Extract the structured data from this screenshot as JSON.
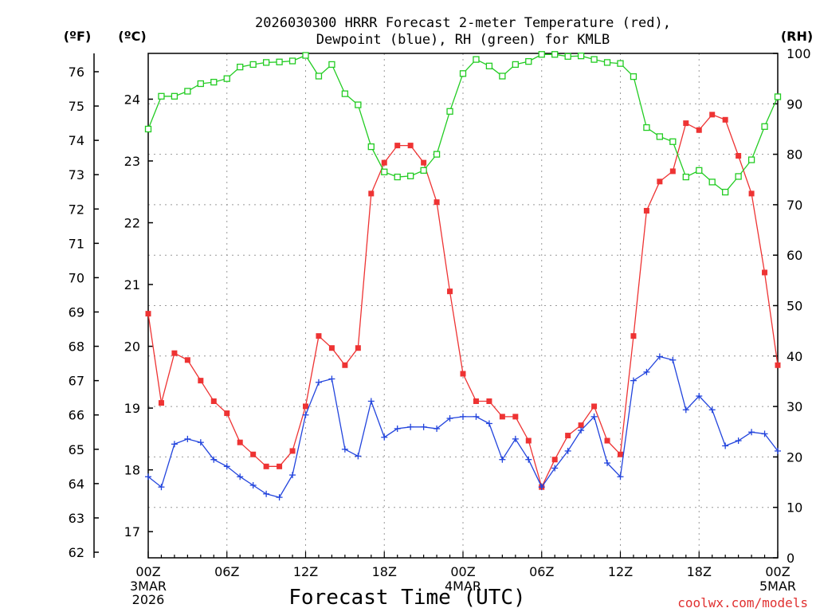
{
  "title_line1": "2026030300 HRRR Forecast 2-meter Temperature (red),",
  "title_line2": "Dewpoint (blue), RH (green) for KMLB",
  "units": {
    "f": "(ºF)",
    "c": "(ºC)",
    "rh": "(RH)"
  },
  "xlabel": "Forecast Time (UTC)",
  "credit": "coolwx.com/models",
  "colors": {
    "temperature": "#ee3333",
    "dewpoint": "#2244dd",
    "rh": "#22cc22",
    "grid": "#999999"
  },
  "chart_data": {
    "type": "line",
    "title": "2026030300 HRRR Forecast 2-meter Temperature (red), Dewpoint (blue), RH (green) for KMLB",
    "xlabel": "Forecast Time (UTC)",
    "x_hours": [
      0,
      1,
      2,
      3,
      4,
      5,
      6,
      7,
      8,
      9,
      10,
      11,
      12,
      13,
      14,
      15,
      16,
      17,
      18,
      19,
      20,
      21,
      22,
      23,
      24,
      25,
      26,
      27,
      28,
      29,
      30,
      31,
      32,
      33,
      34,
      35,
      36,
      37,
      38,
      39,
      40,
      41,
      42,
      43,
      44,
      45,
      46,
      47,
      48
    ],
    "x_range": [
      0,
      48
    ],
    "x_ticks": [
      {
        "hour": 0,
        "label": "00Z",
        "sub": [
          "3MAR",
          "2026"
        ]
      },
      {
        "hour": 6,
        "label": "06Z",
        "sub": []
      },
      {
        "hour": 12,
        "label": "12Z",
        "sub": []
      },
      {
        "hour": 18,
        "label": "18Z",
        "sub": []
      },
      {
        "hour": 24,
        "label": "00Z",
        "sub": [
          "4MAR"
        ]
      },
      {
        "hour": 30,
        "label": "06Z",
        "sub": []
      },
      {
        "hour": 36,
        "label": "12Z",
        "sub": []
      },
      {
        "hour": 42,
        "label": "18Z",
        "sub": []
      },
      {
        "hour": 48,
        "label": "00Z",
        "sub": [
          "5MAR"
        ]
      }
    ],
    "y_left_f": {
      "range": [
        62,
        76.6
      ],
      "ticks": [
        62,
        63,
        64,
        65,
        66,
        67,
        68,
        69,
        70,
        71,
        72,
        73,
        74,
        75,
        76
      ]
    },
    "y_left_c": {
      "ticks": [
        17,
        18,
        19,
        20,
        21,
        22,
        23,
        24
      ]
    },
    "y_right_rh": {
      "range": [
        0,
        100
      ],
      "ticks": [
        0,
        10,
        20,
        30,
        40,
        50,
        60,
        70,
        80,
        90,
        100
      ]
    },
    "grid": true,
    "series": [
      {
        "name": "Temperature",
        "unit": "F",
        "marker": "filled-square",
        "values": [
          68.95,
          66.35,
          67.8,
          67.6,
          67.0,
          66.4,
          66.05,
          65.2,
          64.85,
          64.5,
          64.5,
          64.95,
          66.25,
          68.3,
          67.95,
          67.45,
          67.95,
          72.45,
          73.35,
          73.85,
          73.85,
          73.35,
          72.2,
          69.6,
          67.2,
          66.4,
          66.4,
          65.95,
          65.95,
          65.25,
          63.9,
          64.7,
          65.4,
          65.7,
          66.25,
          65.25,
          64.85,
          68.3,
          71.95,
          72.8,
          73.1,
          74.5,
          74.3,
          74.75,
          74.6,
          73.55,
          72.45,
          70.15,
          67.45
        ]
      },
      {
        "name": "Dewpoint",
        "unit": "F",
        "marker": "plus",
        "values": [
          64.2,
          63.9,
          65.15,
          65.3,
          65.2,
          64.7,
          64.5,
          64.2,
          63.95,
          63.7,
          63.6,
          64.25,
          66.0,
          66.95,
          67.05,
          65.0,
          64.8,
          66.4,
          65.35,
          65.6,
          65.65,
          65.65,
          65.6,
          65.9,
          65.95,
          65.95,
          65.75,
          64.7,
          65.3,
          64.7,
          63.9,
          64.45,
          64.95,
          65.55,
          65.95,
          64.6,
          64.2,
          67.0,
          67.25,
          67.7,
          67.6,
          66.15,
          66.55,
          66.15,
          65.1,
          65.25,
          65.5,
          65.45,
          64.95
        ]
      },
      {
        "name": "RH",
        "unit": "%",
        "marker": "open-square",
        "values": [
          85,
          91.5,
          91.5,
          92.5,
          94,
          94.3,
          95,
          97.3,
          97.8,
          98.2,
          98.3,
          98.5,
          99.6,
          95.5,
          97.8,
          92,
          89.8,
          81.5,
          76.5,
          75.5,
          75.7,
          76.8,
          80,
          88.5,
          96,
          98.8,
          97.5,
          95.5,
          97.8,
          98.4,
          99.8,
          99.8,
          99.4,
          99.5,
          98.8,
          98.2,
          98,
          95.4,
          85.3,
          83.5,
          82.5,
          75.5,
          76.8,
          74.5,
          72.5,
          75.6,
          78.9,
          85.5,
          91.4
        ]
      }
    ]
  }
}
